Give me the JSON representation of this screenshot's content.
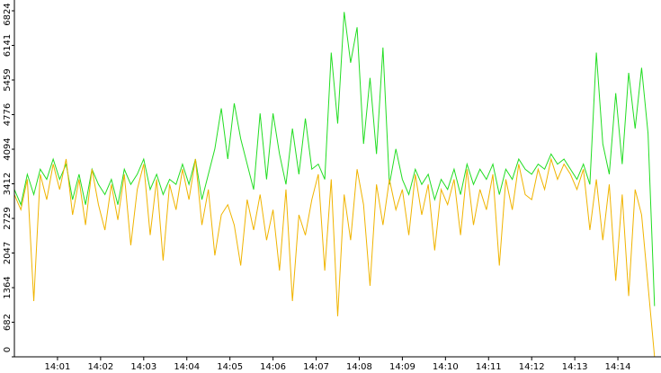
{
  "chart_data": {
    "type": "line",
    "x": [
      840.0,
      840.15,
      840.3,
      840.45,
      840.6,
      840.75,
      840.9,
      841.05,
      841.2,
      841.35,
      841.5,
      841.65,
      841.8,
      841.95,
      842.1,
      842.25,
      842.4,
      842.55,
      842.7,
      842.85,
      843.0,
      843.15,
      843.3,
      843.45,
      843.6,
      843.75,
      843.9,
      844.05,
      844.2,
      844.35,
      844.5,
      844.65,
      844.8,
      844.95,
      845.1,
      845.25,
      845.4,
      845.55,
      845.7,
      845.85,
      846.0,
      846.15,
      846.3,
      846.45,
      846.6,
      846.75,
      846.9,
      847.05,
      847.2,
      847.35,
      847.5,
      847.65,
      847.8,
      847.95,
      848.1,
      848.25,
      848.4,
      848.55,
      848.7,
      848.85,
      849.0,
      849.15,
      849.3,
      849.45,
      849.6,
      849.75,
      849.9,
      850.05,
      850.2,
      850.35,
      850.5,
      850.65,
      850.8,
      850.95,
      851.1,
      851.25,
      851.4,
      851.55,
      851.7,
      851.85,
      852.0,
      852.15,
      852.3,
      852.45,
      852.6,
      852.75,
      852.9,
      853.05,
      853.2,
      853.35,
      853.5,
      853.65,
      853.8,
      853.95,
      854.1,
      854.25,
      854.4,
      854.55,
      854.7,
      854.85
    ],
    "series": [
      {
        "color": "#22dd22",
        "values": [
          3300,
          3000,
          3600,
          3200,
          3700,
          3500,
          3900,
          3500,
          3800,
          3100,
          3600,
          3000,
          3700,
          3400,
          3200,
          3500,
          3000,
          3700,
          3400,
          3600,
          3900,
          3300,
          3600,
          3200,
          3500,
          3400,
          3800,
          3400,
          3900,
          3100,
          3600,
          4100,
          4900,
          3900,
          5000,
          4300,
          3800,
          3300,
          4800,
          3500,
          4800,
          4000,
          3400,
          4500,
          3600,
          4700,
          3700,
          3800,
          3500,
          6000,
          4600,
          6800,
          5800,
          6500,
          4200,
          5500,
          4000,
          6100,
          3400,
          4100,
          3500,
          3200,
          3700,
          3400,
          3600,
          3100,
          3500,
          3300,
          3700,
          3200,
          3800,
          3400,
          3700,
          3500,
          3800,
          3200,
          3700,
          3500,
          3900,
          3700,
          3600,
          3800,
          3700,
          4000,
          3800,
          3900,
          3700,
          3500,
          3800,
          3400,
          6000,
          4200,
          3600,
          5200,
          3800,
          5600,
          4500,
          5700,
          4400,
          1000
        ]
      },
      {
        "color": "#f0b400",
        "values": [
          3200,
          2900,
          3500,
          1100,
          3600,
          3100,
          3800,
          3300,
          3900,
          2800,
          3500,
          2600,
          3700,
          3000,
          2500,
          3400,
          2700,
          3600,
          2200,
          3300,
          3800,
          2400,
          3500,
          1900,
          3400,
          2900,
          3700,
          3100,
          3900,
          2600,
          3300,
          2000,
          2800,
          3000,
          2600,
          1800,
          3100,
          2500,
          3200,
          2300,
          2900,
          1700,
          3300,
          1100,
          2800,
          2400,
          3100,
          3600,
          1700,
          3500,
          800,
          3200,
          2300,
          3700,
          3000,
          1400,
          3400,
          2600,
          3500,
          2900,
          3300,
          2400,
          3600,
          2800,
          3400,
          2100,
          3300,
          3000,
          3500,
          2400,
          3700,
          2600,
          3300,
          2900,
          3600,
          1800,
          3500,
          2900,
          3800,
          3200,
          3100,
          3700,
          3300,
          3900,
          3500,
          3800,
          3600,
          3300,
          3700,
          2500,
          3500,
          2300,
          3400,
          1500,
          3200,
          1200,
          3300,
          2800,
          1400,
          0
        ]
      }
    ],
    "xlim": [
      840,
      855
    ],
    "xticks": [
      {
        "value": 841,
        "label": "14:01"
      },
      {
        "value": 842,
        "label": "14:02"
      },
      {
        "value": 843,
        "label": "14:03"
      },
      {
        "value": 844,
        "label": "14:04"
      },
      {
        "value": 845,
        "label": "14:05"
      },
      {
        "value": 846,
        "label": "14:06"
      },
      {
        "value": 847,
        "label": "14:07"
      },
      {
        "value": 848,
        "label": "14:08"
      },
      {
        "value": 849,
        "label": "14:09"
      },
      {
        "value": 850,
        "label": "14:10"
      },
      {
        "value": 851,
        "label": "14:11"
      },
      {
        "value": 852,
        "label": "14:12"
      },
      {
        "value": 853,
        "label": "14:13"
      },
      {
        "value": 854,
        "label": "14:14"
      }
    ],
    "ylim": [
      0,
      6824
    ],
    "yticks": [
      0,
      682,
      1364,
      2047,
      2729,
      3412,
      4094,
      4776,
      5459,
      6141,
      6824
    ]
  }
}
